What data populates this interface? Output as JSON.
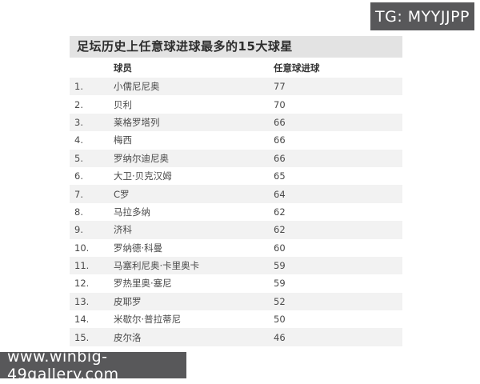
{
  "watermarks": {
    "telegram": "TG: MYYJJPP",
    "website": "www.winbig-49gallery.com"
  },
  "table": {
    "title": "足坛历史上任意球进球最多的15大球星",
    "headers": {
      "rank": "",
      "player": "球员",
      "goals": "任意球进球"
    }
  },
  "chart_data": {
    "type": "table",
    "title": "足坛历史上任意球进球最多的15大球星",
    "columns": [
      "球员",
      "任意球进球"
    ],
    "rows": [
      {
        "rank": "1.",
        "player": "小儒尼尼奥",
        "goals": 77
      },
      {
        "rank": "2.",
        "player": "贝利",
        "goals": 70
      },
      {
        "rank": "3.",
        "player": "莱格罗塔列",
        "goals": 66
      },
      {
        "rank": "4.",
        "player": "梅西",
        "goals": 66
      },
      {
        "rank": "5.",
        "player": "罗纳尔迪尼奥",
        "goals": 66
      },
      {
        "rank": "6.",
        "player": "大卫·贝克汉姆",
        "goals": 65
      },
      {
        "rank": "7.",
        "player": "C罗",
        "goals": 64
      },
      {
        "rank": "8.",
        "player": "马拉多纳",
        "goals": 62
      },
      {
        "rank": "9.",
        "player": "济科",
        "goals": 62
      },
      {
        "rank": "10.",
        "player": "罗纳德·科曼",
        "goals": 60
      },
      {
        "rank": "11.",
        "player": "马塞利尼奥·卡里奥卡",
        "goals": 59
      },
      {
        "rank": "12.",
        "player": "罗热里奥·塞尼",
        "goals": 59
      },
      {
        "rank": "13.",
        "player": "皮耶罗",
        "goals": 52
      },
      {
        "rank": "14.",
        "player": "米歇尔·普拉蒂尼",
        "goals": 50
      },
      {
        "rank": "15.",
        "player": "皮尔洛",
        "goals": 46
      }
    ],
    "layout": {
      "stripe_color": "#f2f2f2",
      "title_bar_color": "#e3e3e3",
      "watermark_color": "#58585a"
    }
  }
}
